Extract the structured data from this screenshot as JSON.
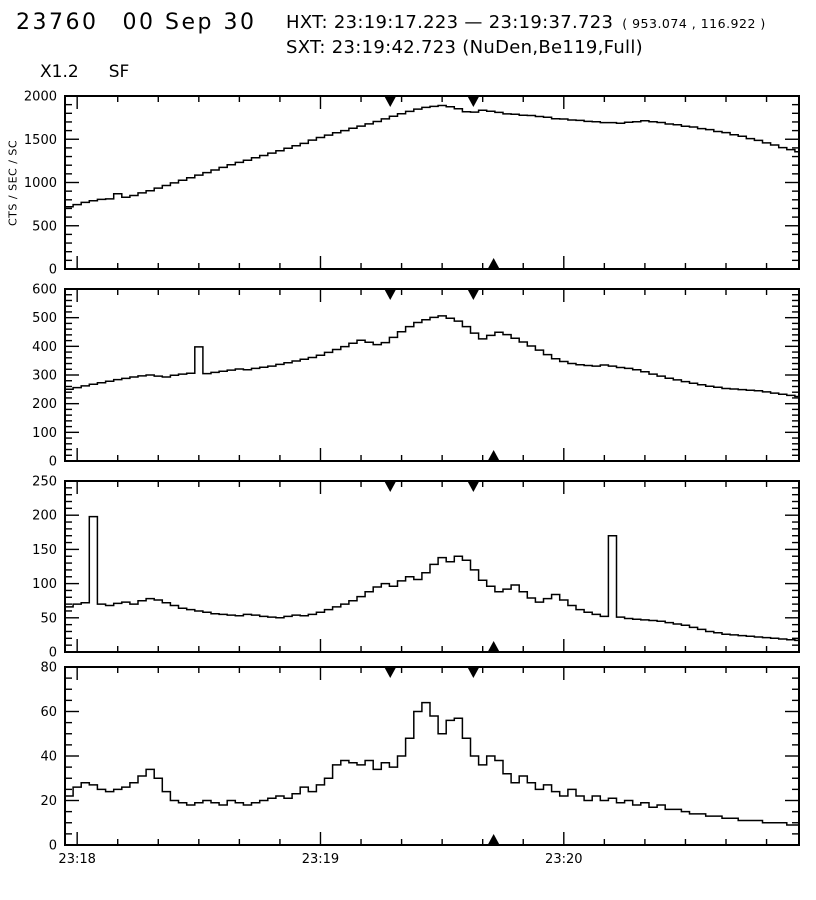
{
  "header": {
    "event_number": "23760",
    "date": "00 Sep 30",
    "hxt_range": "HXT: 23:19:17.223 — 23:19:37.723",
    "hxt_coords": "( 953.074 , 116.922 )",
    "sxt_line": "SXT: 23:19:42.723 (NuDen,Be119,Full)",
    "flare_class": "X1.2",
    "flare_type": "SF"
  },
  "chart_data": {
    "type": "line",
    "style": "step-histogram",
    "title": "",
    "ylabel": "CTS / SEC / SC",
    "x_axis": {
      "start_clock": "23:17:57",
      "duration_s": 181,
      "major_ticks": [
        {
          "t": 3,
          "label": "23:18"
        },
        {
          "t": 63,
          "label": "23:19"
        },
        {
          "t": 123,
          "label": "23:20"
        }
      ],
      "minor_tick_step_s": 10,
      "minor_tick_offset_s": 3
    },
    "markers": {
      "hxt_interval_s": [
        80.2,
        100.7
      ],
      "sxt_time_s": 105.7
    },
    "sample_step_s": 2,
    "panels": [
      {
        "ylim": [
          0,
          2000
        ],
        "ytick": 500,
        "yminor": 100,
        "values": [
          720,
          745,
          770,
          790,
          805,
          810,
          870,
          830,
          850,
          880,
          905,
          935,
          965,
          995,
          1025,
          1055,
          1085,
          1115,
          1145,
          1175,
          1205,
          1232,
          1258,
          1285,
          1312,
          1340,
          1368,
          1396,
          1424,
          1452,
          1490,
          1520,
          1548,
          1576,
          1600,
          1628,
          1652,
          1678,
          1705,
          1735,
          1765,
          1795,
          1822,
          1848,
          1868,
          1880,
          1890,
          1876,
          1852,
          1818,
          1814,
          1836,
          1824,
          1810,
          1793,
          1790,
          1778,
          1774,
          1763,
          1754,
          1738,
          1734,
          1722,
          1718,
          1706,
          1702,
          1693,
          1692,
          1686,
          1697,
          1703,
          1714,
          1703,
          1694,
          1676,
          1667,
          1650,
          1642,
          1623,
          1612,
          1590,
          1577,
          1553,
          1534,
          1508,
          1487,
          1458,
          1434,
          1403,
          1380,
          1355
        ]
      },
      {
        "ylim": [
          0,
          600
        ],
        "ytick": 100,
        "yminor": 20,
        "values": [
          250,
          256,
          262,
          268,
          273,
          278,
          284,
          288,
          293,
          297,
          300,
          296,
          293,
          299,
          303,
          306,
          398,
          305,
          309,
          313,
          317,
          321,
          318,
          323,
          327,
          331,
          337,
          343,
          349,
          355,
          361,
          369,
          379,
          389,
          399,
          411,
          421,
          414,
          406,
          413,
          431,
          451,
          469,
          483,
          493,
          501,
          506,
          498,
          488,
          469,
          446,
          426,
          438,
          449,
          441,
          428,
          415,
          401,
          387,
          371,
          357,
          347,
          340,
          336,
          333,
          331,
          335,
          331,
          326,
          323,
          318,
          311,
          303,
          296,
          289,
          283,
          277,
          271,
          266,
          261,
          257,
          253,
          251,
          249,
          247,
          245,
          241,
          237,
          233,
          229,
          225
        ]
      },
      {
        "ylim": [
          0,
          250
        ],
        "ytick": 50,
        "yminor": 10,
        "values": [
          66,
          70,
          72,
          198,
          70,
          68,
          71,
          73,
          70,
          75,
          78,
          76,
          72,
          68,
          64,
          62,
          60,
          58,
          56,
          55,
          54,
          53,
          55,
          54,
          52,
          51,
          50,
          52,
          54,
          53,
          55,
          58,
          62,
          66,
          70,
          75,
          81,
          88,
          95,
          100,
          96,
          104,
          110,
          106,
          116,
          128,
          138,
          132,
          140,
          134,
          120,
          105,
          96,
          88,
          92,
          98,
          88,
          79,
          73,
          78,
          84,
          76,
          68,
          62,
          58,
          55,
          52,
          170,
          51,
          49,
          48,
          47,
          46,
          45,
          43,
          41,
          39,
          36,
          33,
          30,
          28,
          26,
          25,
          24,
          23,
          22,
          21,
          20,
          19,
          18,
          17
        ]
      },
      {
        "ylim": [
          0,
          80
        ],
        "ytick": 20,
        "yminor": 5,
        "values": [
          22,
          26,
          28,
          27,
          25,
          24,
          25,
          26,
          28,
          31,
          34,
          30,
          24,
          20,
          19,
          18,
          19,
          20,
          19,
          18,
          20,
          19,
          18,
          19,
          20,
          21,
          22,
          21,
          23,
          26,
          24,
          27,
          30,
          36,
          38,
          37,
          36,
          38,
          34,
          37,
          35,
          40,
          48,
          60,
          64,
          58,
          50,
          56,
          57,
          48,
          40,
          36,
          40,
          38,
          32,
          28,
          31,
          28,
          25,
          27,
          24,
          22,
          25,
          22,
          20,
          22,
          20,
          21,
          19,
          20,
          18,
          19,
          17,
          18,
          16,
          16,
          15,
          14,
          14,
          13,
          13,
          12,
          12,
          11,
          11,
          11,
          10,
          10,
          10,
          9,
          9
        ]
      }
    ]
  }
}
